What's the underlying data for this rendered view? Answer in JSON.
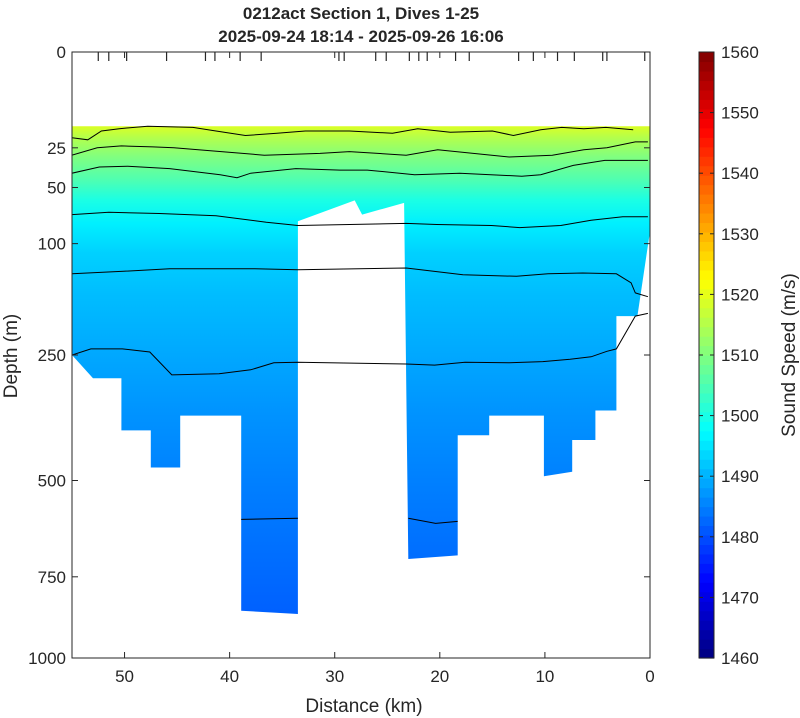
{
  "chart_data": {
    "type": "heatmap",
    "title_lines": [
      "0212act Section 1, Dives 1-25",
      "2025-09-24 18:14 - 2025-09-26 16:06"
    ],
    "xlabel": "Distance (km)",
    "ylabel": "Depth (m)",
    "xlim": [
      55,
      0
    ],
    "xdir": "reversed",
    "ylim": [
      0,
      1000
    ],
    "ydir": "reversed",
    "yscale": "sqrt",
    "xticks": [
      50,
      40,
      30,
      20,
      10,
      0
    ],
    "yticks": [
      0,
      25,
      50,
      100,
      250,
      500,
      750,
      1000
    ],
    "dive_markers_km": [
      52.5,
      51.5,
      49.8,
      46,
      42.3,
      41.4,
      39,
      37,
      29.6,
      29.1,
      26.1,
      25.1,
      22.9,
      22,
      21.2,
      18.5,
      17.2,
      12.5,
      11.1,
      8.8,
      7.2,
      4.5,
      4.1,
      0.5
    ],
    "colorbar": {
      "label": "Sound Speed (m/s)",
      "min": 1460,
      "max": 1560,
      "ticks": [
        1460,
        1470,
        1480,
        1490,
        1500,
        1510,
        1520,
        1530,
        1540,
        1550,
        1560
      ],
      "colormap": "jet"
    },
    "field": {
      "description": "Sound speed section; warm fast water near surface, slower with depth",
      "surface_value": 1518,
      "data_top_depth_m": 15,
      "layers": [
        {
          "depth_m": 15,
          "sound_speed": 1519
        },
        {
          "depth_m": 20,
          "sound_speed": 1515
        },
        {
          "depth_m": 30,
          "sound_speed": 1510
        },
        {
          "depth_m": 45,
          "sound_speed": 1505
        },
        {
          "depth_m": 60,
          "sound_speed": 1500
        },
        {
          "depth_m": 80,
          "sound_speed": 1496
        },
        {
          "depth_m": 110,
          "sound_speed": 1493
        },
        {
          "depth_m": 160,
          "sound_speed": 1491
        },
        {
          "depth_m": 250,
          "sound_speed": 1489
        },
        {
          "depth_m": 350,
          "sound_speed": 1487
        },
        {
          "depth_m": 500,
          "sound_speed": 1485
        },
        {
          "depth_m": 850,
          "sound_speed": 1482
        }
      ],
      "contour_interval": 5
    },
    "coverage": {
      "gap_km": [
        33.5,
        23
      ],
      "max_depth_by_distance": [
        {
          "x": 55,
          "depth": 250
        },
        {
          "x": 53,
          "depth": 290
        },
        {
          "x": 50.3,
          "depth": 290
        },
        {
          "x": 50.3,
          "depth": 390
        },
        {
          "x": 47.5,
          "depth": 390
        },
        {
          "x": 47.5,
          "depth": 470
        },
        {
          "x": 44.7,
          "depth": 470
        },
        {
          "x": 44.7,
          "depth": 360
        },
        {
          "x": 38.9,
          "depth": 360
        },
        {
          "x": 38.9,
          "depth": 850
        },
        {
          "x": 33.5,
          "depth": 860
        },
        {
          "x": 33.5,
          "depth": 78
        },
        {
          "x": 28.1,
          "depth": 60
        },
        {
          "x": 27.4,
          "depth": 72
        },
        {
          "x": 23.4,
          "depth": 62
        },
        {
          "x": 23,
          "depth": 700
        },
        {
          "x": 18.3,
          "depth": 690
        },
        {
          "x": 18.3,
          "depth": 400
        },
        {
          "x": 15.3,
          "depth": 400
        },
        {
          "x": 15.3,
          "depth": 360
        },
        {
          "x": 10.1,
          "depth": 360
        },
        {
          "x": 10.1,
          "depth": 490
        },
        {
          "x": 7.4,
          "depth": 480
        },
        {
          "x": 7.4,
          "depth": 410
        },
        {
          "x": 5.2,
          "depth": 410
        },
        {
          "x": 5.2,
          "depth": 350
        },
        {
          "x": 3.2,
          "depth": 350
        },
        {
          "x": 3.2,
          "depth": 190
        },
        {
          "x": 1.2,
          "depth": 190
        },
        {
          "x": 0.1,
          "depth": 95
        },
        {
          "x": 0,
          "depth": 90
        }
      ]
    },
    "contours": [
      {
        "level": 1515,
        "points": [
          [
            55,
            20
          ],
          [
            53.5,
            21
          ],
          [
            52.2,
            17
          ],
          [
            50.5,
            16
          ],
          [
            47.8,
            15
          ],
          [
            43.5,
            15.5
          ],
          [
            41.3,
            17
          ],
          [
            38.5,
            19
          ],
          [
            35.5,
            18
          ],
          [
            32.8,
            17
          ],
          [
            28.6,
            17
          ],
          [
            24.5,
            18
          ],
          [
            22.1,
            16
          ],
          [
            19,
            17.5
          ],
          [
            15,
            17
          ],
          [
            13,
            19
          ],
          [
            10.4,
            16.5
          ],
          [
            8.4,
            15.5
          ],
          [
            6.3,
            16
          ],
          [
            4.2,
            15.5
          ],
          [
            1.6,
            16.5
          ]
        ]
      },
      {
        "level": 1510,
        "points": [
          [
            55,
            29
          ],
          [
            52.6,
            25
          ],
          [
            50.3,
            24
          ],
          [
            47.3,
            24.5
          ],
          [
            45.3,
            25
          ],
          [
            40.8,
            27
          ],
          [
            36.7,
            29
          ],
          [
            31.4,
            28
          ],
          [
            28.6,
            27
          ],
          [
            23.2,
            29
          ],
          [
            20.2,
            26
          ],
          [
            13.4,
            30
          ],
          [
            9.3,
            29
          ],
          [
            6.3,
            26
          ],
          [
            4.1,
            25
          ],
          [
            1.4,
            22
          ],
          [
            0.2,
            22
          ]
        ]
      },
      {
        "level": 1505,
        "points": [
          [
            55,
            40
          ],
          [
            52.4,
            36
          ],
          [
            49.7,
            35.5
          ],
          [
            45.7,
            37
          ],
          [
            40.9,
            41
          ],
          [
            39.3,
            43
          ],
          [
            38,
            40
          ],
          [
            33.7,
            37
          ],
          [
            29.5,
            38
          ],
          [
            26.9,
            38
          ],
          [
            22.4,
            41
          ],
          [
            18.1,
            40
          ],
          [
            12.2,
            42
          ],
          [
            10.4,
            41
          ],
          [
            7.3,
            35
          ],
          [
            4.3,
            32
          ],
          [
            0.2,
            32
          ]
        ]
      },
      {
        "level": 1495,
        "points": [
          [
            55,
            72
          ],
          [
            51.5,
            70
          ],
          [
            46.7,
            71
          ],
          [
            41.3,
            73
          ],
          [
            36.5,
            79
          ],
          [
            33.5,
            82
          ],
          [
            23.2,
            80
          ],
          [
            20.3,
            81
          ],
          [
            15.1,
            82
          ],
          [
            12.4,
            84
          ],
          [
            8.5,
            82
          ],
          [
            5.6,
            77
          ],
          [
            2.6,
            74
          ],
          [
            0.2,
            74
          ]
        ]
      },
      {
        "level": 1490,
        "points": [
          [
            55,
            134
          ],
          [
            50.1,
            131
          ],
          [
            45.7,
            128
          ],
          [
            41.8,
            128
          ],
          [
            37.6,
            128
          ],
          [
            33.5,
            129
          ],
          [
            23.2,
            127
          ],
          [
            20.6,
            131
          ],
          [
            17.8,
            135
          ],
          [
            12.7,
            137
          ],
          [
            9.7,
            134
          ],
          [
            6.4,
            133
          ],
          [
            3.2,
            134
          ],
          [
            1.8,
            145
          ],
          [
            1.4,
            158
          ],
          [
            0.2,
            163
          ]
        ]
      },
      {
        "level": 1487,
        "points": [
          [
            55,
            250
          ],
          [
            53.2,
            240
          ],
          [
            50.2,
            240
          ],
          [
            47.6,
            245
          ],
          [
            45.5,
            284
          ],
          [
            41,
            282
          ],
          [
            38,
            275
          ],
          [
            35.8,
            263
          ],
          [
            33.5,
            262
          ],
          [
            23.2,
            265
          ],
          [
            20.5,
            267
          ],
          [
            17.6,
            262
          ],
          [
            13.4,
            263
          ],
          [
            10.2,
            261
          ],
          [
            7.6,
            257
          ],
          [
            5.6,
            253
          ],
          [
            4.1,
            244
          ],
          [
            3.2,
            240
          ],
          [
            1.4,
            190
          ],
          [
            0.2,
            186
          ]
        ]
      },
      {
        "level": 1484,
        "points": [
          [
            38.9,
            595
          ],
          [
            33.5,
            592
          ]
        ]
      },
      {
        "level": 1484,
        "points": [
          [
            23,
            592
          ],
          [
            20.4,
            605
          ],
          [
            18.3,
            600
          ]
        ]
      }
    ]
  }
}
